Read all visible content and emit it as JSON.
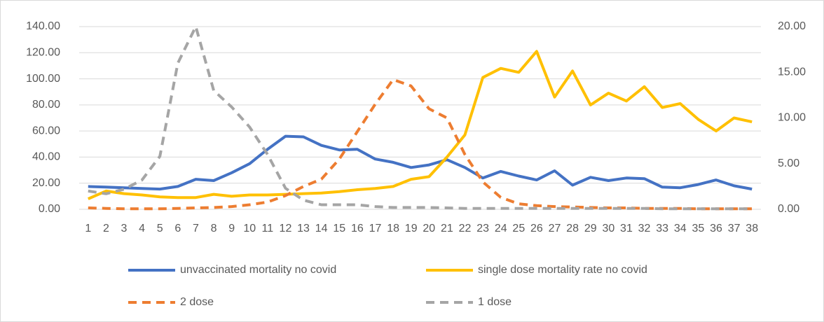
{
  "chart_data": {
    "type": "line",
    "categories": [
      "1",
      "2",
      "3",
      "4",
      "5",
      "6",
      "7",
      "8",
      "9",
      "10",
      "11",
      "12",
      "13",
      "14",
      "15",
      "16",
      "17",
      "18",
      "19",
      "20",
      "21",
      "22",
      "23",
      "24",
      "25",
      "26",
      "27",
      "28",
      "29",
      "30",
      "31",
      "32",
      "33",
      "34",
      "35",
      "36",
      "37",
      "38"
    ],
    "ylim": [
      0,
      140
    ],
    "yticks": [
      {
        "value": 0,
        "label": "0.00"
      },
      {
        "value": 20,
        "label": "20.00"
      },
      {
        "value": 40,
        "label": "40.00"
      },
      {
        "value": 60,
        "label": "60.00"
      },
      {
        "value": 80,
        "label": "80.00"
      },
      {
        "value": 100,
        "label": "100.00"
      },
      {
        "value": 120,
        "label": "120.00"
      },
      {
        "value": 140,
        "label": "140.00"
      }
    ],
    "y2lim": [
      0,
      20
    ],
    "y2ticks": [
      {
        "value": 0,
        "label": "0.00"
      },
      {
        "value": 5,
        "label": "5.00"
      },
      {
        "value": 10,
        "label": "10.00"
      },
      {
        "value": 15,
        "label": "15.00"
      },
      {
        "value": 20,
        "label": "20.00"
      }
    ],
    "grid": true,
    "legend": "bottom",
    "series": [
      {
        "name": "unvaccinated mortality no covid",
        "color": "#4472c4",
        "dashed": false,
        "values": [
          17.5,
          17,
          16.5,
          16,
          15.5,
          17.5,
          23,
          22,
          28,
          35,
          46,
          56,
          55.5,
          49,
          45.5,
          46,
          38.5,
          36,
          32,
          34,
          38,
          32,
          24,
          29,
          25.5,
          22.5,
          29.5,
          18.5,
          24.5,
          22,
          24,
          23.5,
          17,
          16.5,
          19,
          22.5,
          18,
          15.5
        ]
      },
      {
        "name": "single dose mortality rate no covid",
        "color": "#ffc000",
        "dashed": false,
        "values": [
          8,
          14,
          12,
          11,
          9.5,
          9,
          9,
          11.5,
          10,
          11,
          11,
          11.5,
          12,
          12.5,
          13.5,
          15,
          16,
          17.5,
          23,
          25,
          40,
          57,
          101,
          108,
          105,
          121,
          86,
          106,
          80,
          89,
          83,
          94,
          78,
          81,
          69,
          60,
          70,
          67
        ]
      },
      {
        "name": "2 dose",
        "color": "#ed7d31",
        "dashed": true,
        "axis": "y2",
        "values": [
          0.15,
          0.1,
          0.05,
          0.05,
          0.05,
          0.1,
          0.15,
          0.2,
          0.3,
          0.5,
          0.8,
          1.5,
          2.5,
          3.3,
          5.5,
          8.5,
          11.5,
          14.2,
          13.5,
          11,
          10,
          6,
          3,
          1.3,
          0.6,
          0.4,
          0.3,
          0.25,
          0.2,
          0.15,
          0.15,
          0.1,
          0.1,
          0.1,
          0.05,
          0.05,
          0.05,
          0.05
        ]
      },
      {
        "name": "1 dose",
        "color": "#a5a5a5",
        "dashed": true,
        "axis": "y2",
        "values": [
          2,
          1.7,
          2.2,
          3.2,
          5.8,
          16,
          20,
          13,
          11.2,
          9,
          6,
          2.3,
          1,
          0.5,
          0.5,
          0.5,
          0.3,
          0.2,
          0.2,
          0.2,
          0.15,
          0.1,
          0.1,
          0.1,
          0.1,
          0.1,
          0.1,
          0.1,
          0.1,
          0.1,
          0.1,
          0.1,
          0.05,
          0.05,
          0.05,
          0.05,
          0.05,
          0.05
        ]
      }
    ]
  }
}
